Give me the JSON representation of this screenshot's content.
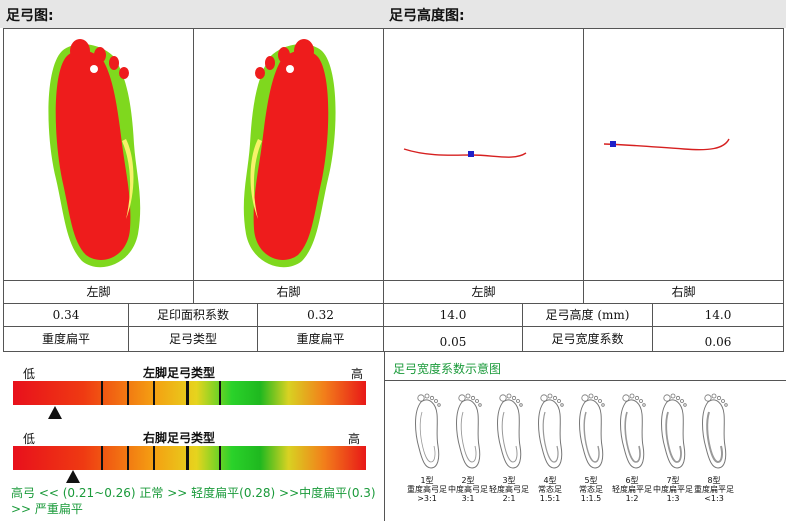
{
  "sections": {
    "arch_map_title": "足弓图:",
    "arch_height_title": "足弓高度图:"
  },
  "foot_labels": {
    "left": "左脚",
    "right": "右脚"
  },
  "table": {
    "row1": [
      "0.34",
      "足印面积系数",
      "0.32",
      "14.0",
      "足弓高度 (mm)",
      "14.0"
    ],
    "row2": [
      "重度扁平",
      "足弓类型",
      "重度扁平",
      "0.05",
      "足弓宽度系数",
      "0.06"
    ]
  },
  "scales": {
    "low": "低",
    "high": "高",
    "left_title": "左脚足弓类型",
    "right_title": "右脚足弓类型",
    "left_marker": 0.12,
    "right_marker": 0.17,
    "legend": "高弓 <<  (0.21~0.26) 正常 >> 轻度扁平(0.28) >>中度扁平(0.3) >> 严重扁平"
  },
  "diagram": {
    "title": "足弓宽度系数示意图",
    "types": [
      {
        "name": "1型",
        "desc": "重度高弓足",
        "ratio": ">3:1"
      },
      {
        "name": "2型",
        "desc": "中度高弓足",
        "ratio": "3:1"
      },
      {
        "name": "3型",
        "desc": "轻度高弓足",
        "ratio": "2:1"
      },
      {
        "name": "4型",
        "desc": "常态足",
        "ratio": "1.5:1"
      },
      {
        "name": "5型",
        "desc": "常态足",
        "ratio": "1:1.5"
      },
      {
        "name": "6型",
        "desc": "轻度扁平足",
        "ratio": "1:2"
      },
      {
        "name": "7型",
        "desc": "中度扁平足",
        "ratio": "1:3"
      },
      {
        "name": "8型",
        "desc": "重度扁平足",
        "ratio": "<1:3"
      }
    ]
  },
  "colors": {
    "footprint": "#ee1c1c",
    "edge": "#7fd81e",
    "arch_line": "#d62020",
    "marker": "#2020c8",
    "legend_green": "#1a9a3a"
  }
}
